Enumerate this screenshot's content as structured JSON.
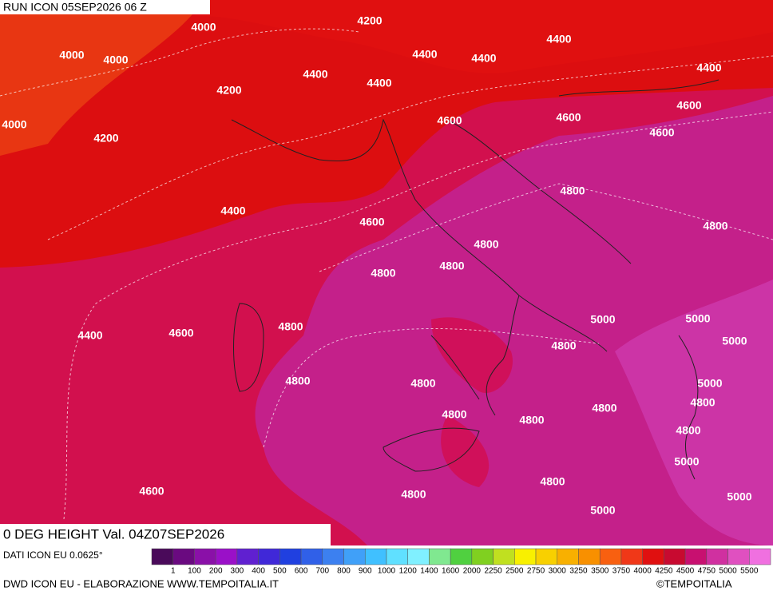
{
  "header": {
    "run": "RUN ICON 05SEP2026 06 Z"
  },
  "map": {
    "title": "0 DEG HEIGHT Val. 04Z07SEP2026",
    "contour_labels": [
      4000,
      4200,
      4000,
      4000,
      4400,
      4400,
      4400,
      4400,
      4400,
      4400,
      4200,
      4000,
      4200,
      4600,
      4600,
      4600,
      4600,
      4400,
      4600,
      4800,
      4800,
      4800,
      4800,
      4800,
      5000,
      5000,
      5000,
      4400,
      4600,
      4800,
      4800,
      4800,
      4800,
      5000,
      4800,
      4800,
      4800,
      4800,
      4800,
      5000,
      4800,
      4600,
      4800,
      5000,
      5000
    ]
  },
  "legend": {
    "source": "DATI ICON EU 0.0625°",
    "colors": [
      "#4a0a5a",
      "#6a0a80",
      "#8a10a8",
      "#9a10c8",
      "#6020d0",
      "#4028d8",
      "#2040e0",
      "#3060e8",
      "#3c80f0",
      "#40a0f8",
      "#40c0ff",
      "#60e0ff",
      "#80f0ff",
      "#80e890",
      "#50d040",
      "#80d020",
      "#c0e020",
      "#f8f000",
      "#f8d000",
      "#f8b000",
      "#f89000",
      "#f86010",
      "#f03818",
      "#e01010",
      "#c80a30",
      "#c81070",
      "#d030a0",
      "#e050c0",
      "#f070e0"
    ],
    "labels": [
      1,
      100,
      200,
      300,
      400,
      500,
      600,
      700,
      800,
      900,
      1000,
      1200,
      1400,
      1600,
      2000,
      2250,
      2500,
      2750,
      3000,
      3250,
      3500,
      3750,
      4000,
      4250,
      4500,
      4750,
      5000,
      5500
    ]
  },
  "footer": {
    "credit": "DWD ICON EU - ELABORAZIONE WWW.TEMPOITALIA.IT",
    "copyright": "©TEMPOITALIA"
  }
}
